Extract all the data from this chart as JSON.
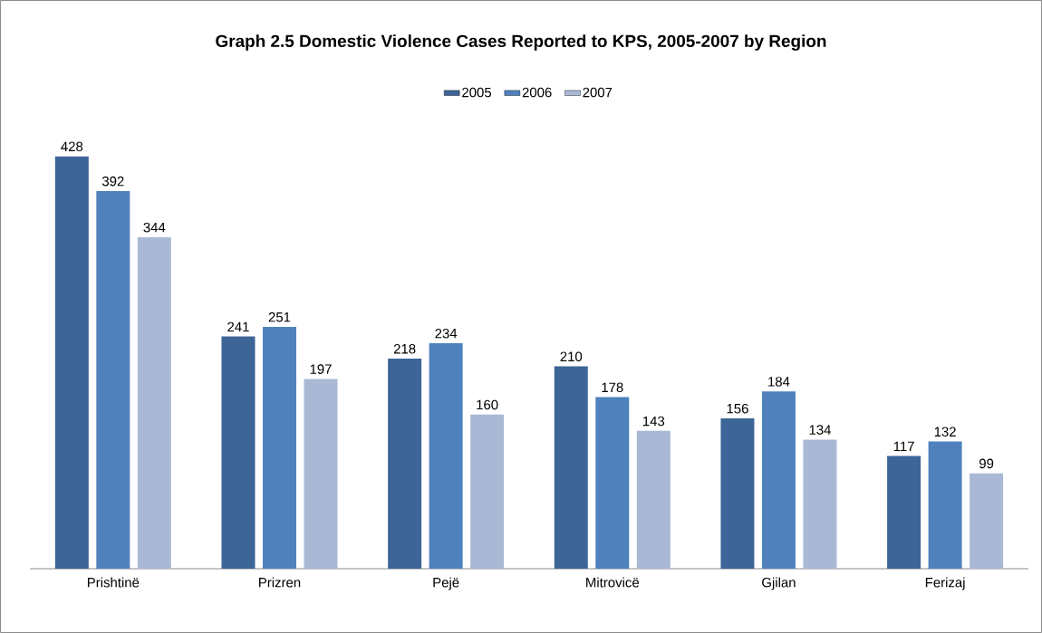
{
  "chart_data": {
    "type": "bar",
    "title": "Graph 2.5 Domestic Violence Cases Reported to KPS, 2005-2007 by Region",
    "categories": [
      "Prishtinë",
      "Prizren",
      "Pejë",
      "Mitrovicë",
      "Gjilan",
      "Ferizaj"
    ],
    "series": [
      {
        "name": "2005",
        "color": "#3d6597",
        "values": [
          428,
          241,
          218,
          210,
          156,
          117
        ]
      },
      {
        "name": "2006",
        "color": "#4f81bd",
        "values": [
          392,
          251,
          234,
          178,
          184,
          132
        ]
      },
      {
        "name": "2007",
        "color": "#a9b9d5",
        "values": [
          344,
          197,
          160,
          143,
          134,
          99
        ]
      }
    ],
    "data_labels": true,
    "legend": "top"
  }
}
